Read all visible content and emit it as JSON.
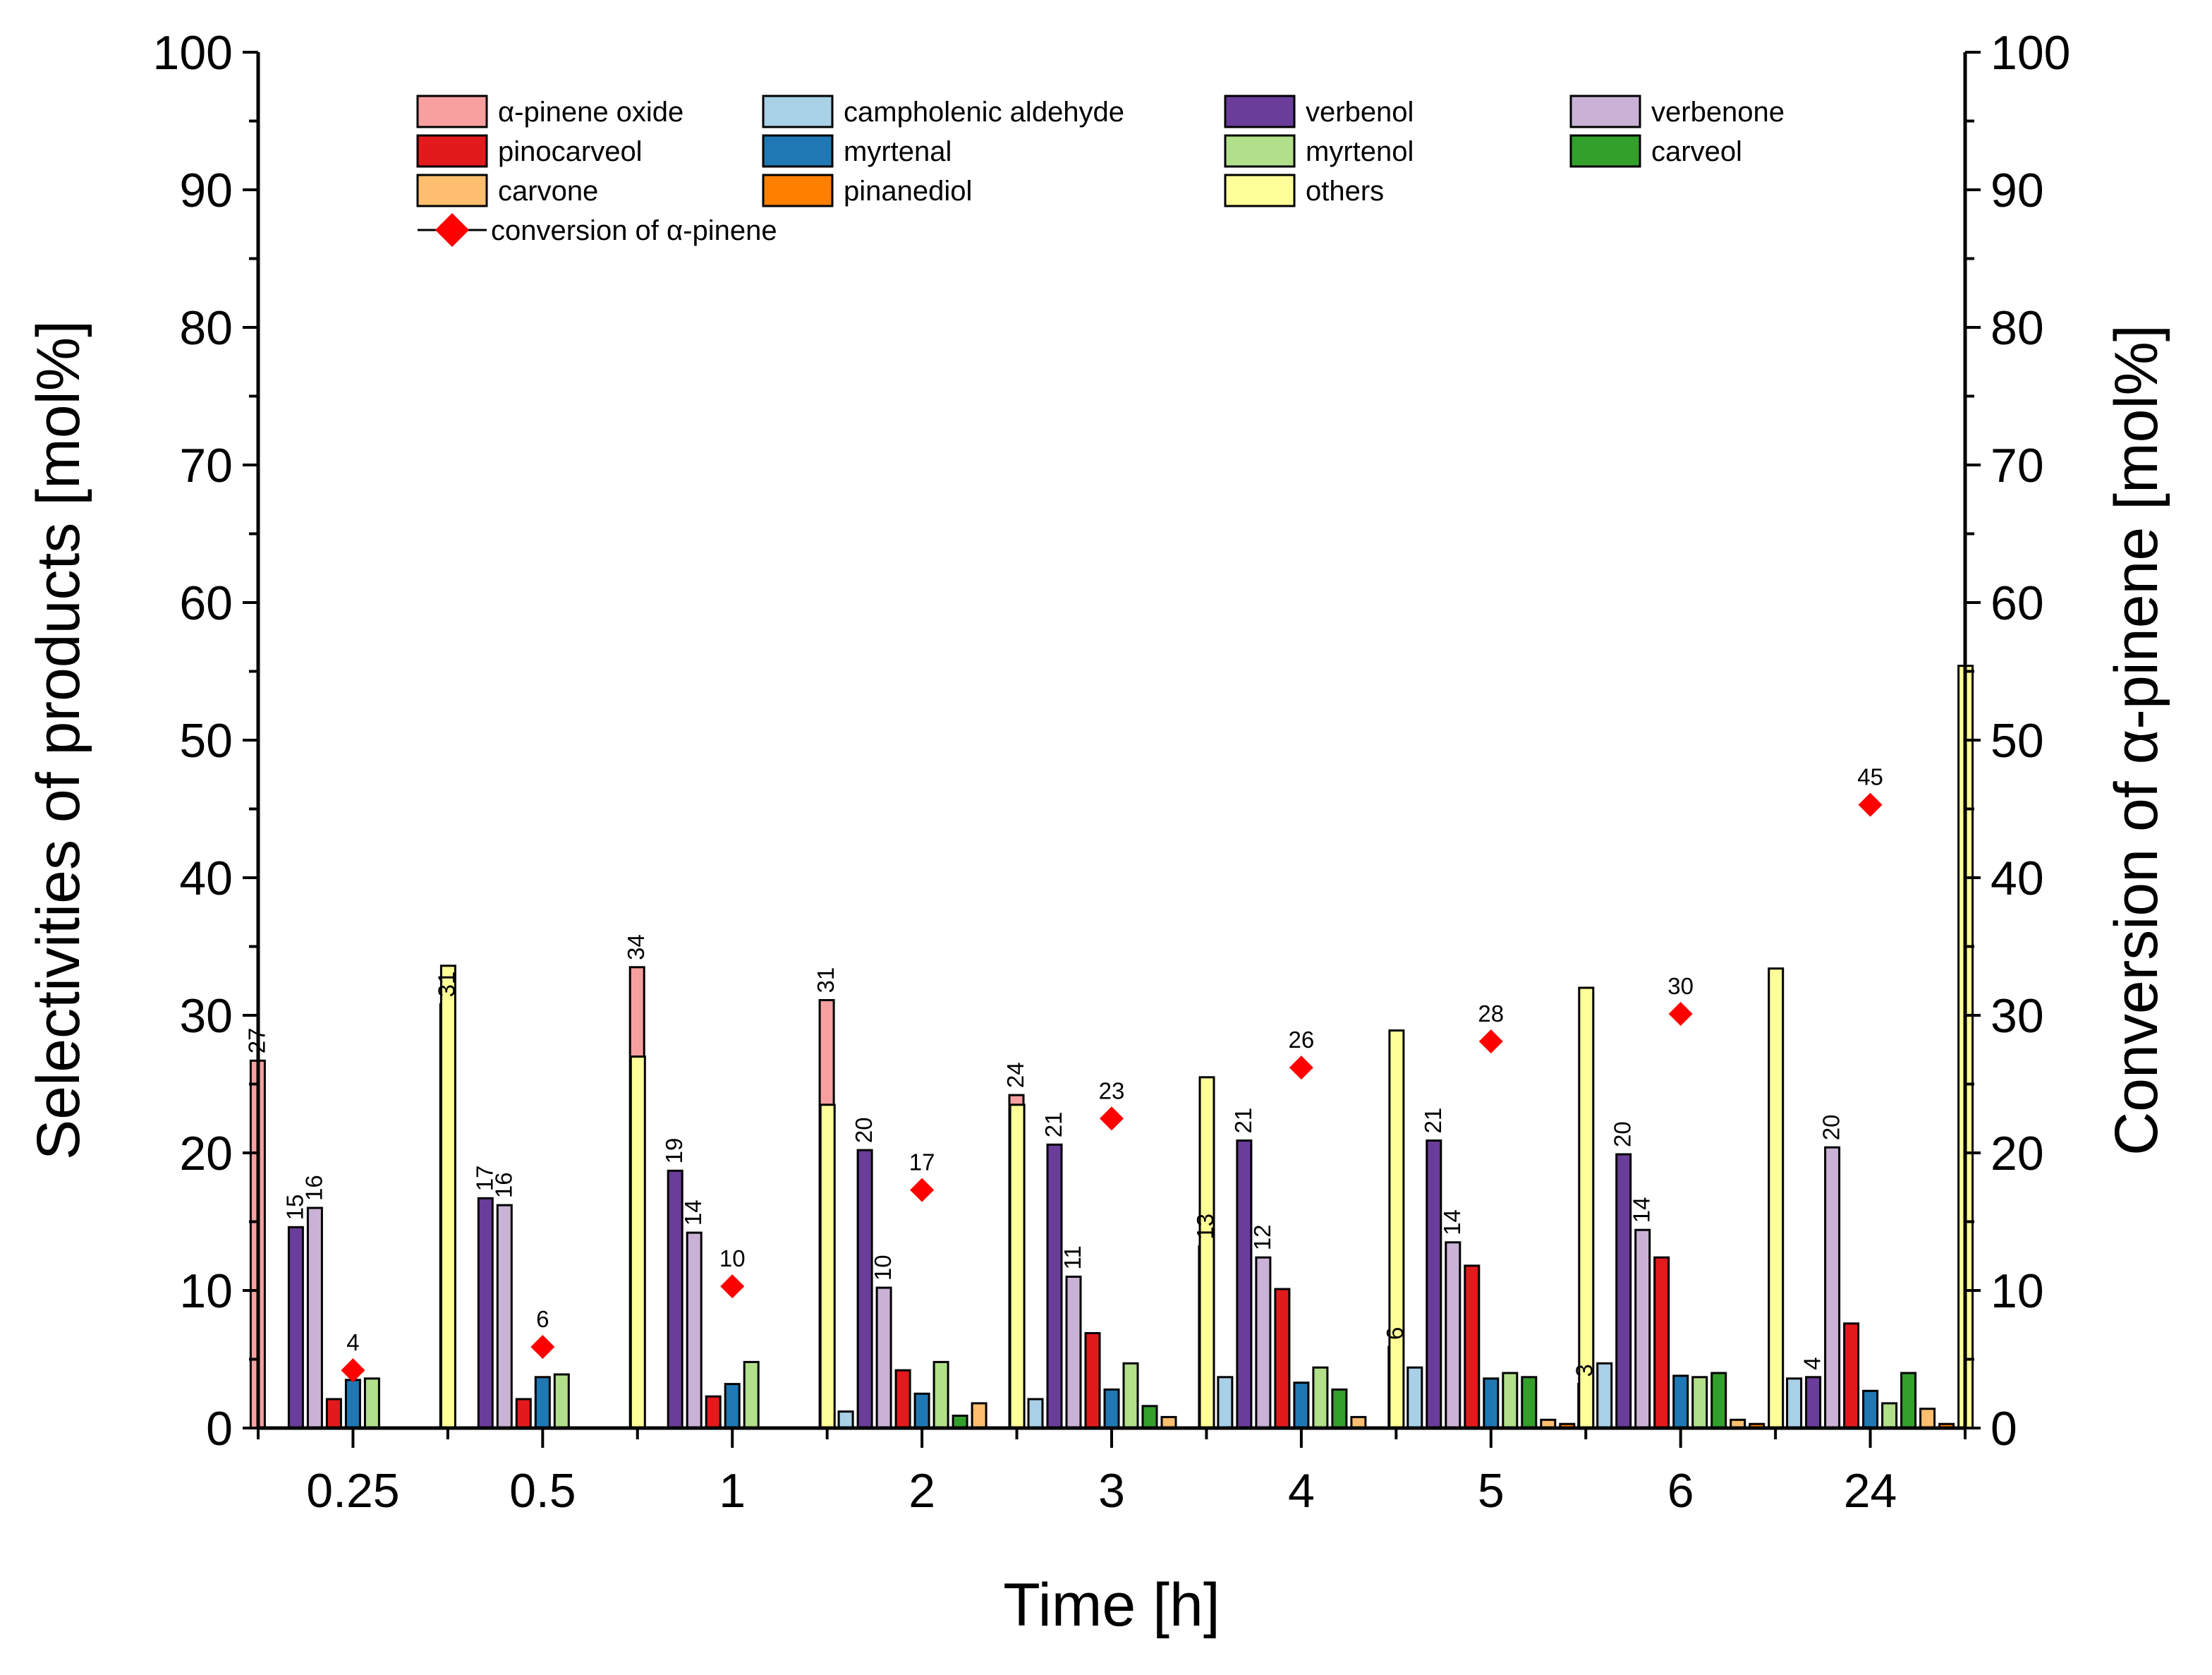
{
  "chart_data": {
    "type": "bar",
    "xlabel": "Time [h]",
    "ylabel_left": "Selectivities of products [mol%]",
    "ylabel_right": "Conversion of α-pinene [mol%]",
    "ylim": [
      0,
      100
    ],
    "yticks": [
      "0",
      "10",
      "20",
      "30",
      "40",
      "50",
      "60",
      "70",
      "80",
      "90",
      "100"
    ],
    "categories": [
      "0.25",
      "0.5",
      "1",
      "2",
      "3",
      "4",
      "5",
      "6",
      "24"
    ],
    "series": [
      {
        "name": "α-pinene oxide",
        "color": "#f8a0a0",
        "values": [
          26.7,
          30.8,
          33.5,
          31.1,
          24.2,
          13.2,
          5.9,
          3.2,
          0
        ],
        "labels": [
          "27",
          "31",
          "34",
          "31",
          "24",
          "13",
          "6",
          "3",
          ""
        ]
      },
      {
        "name": "campholenic aldehyde",
        "color": "#a8d0e6",
        "values": [
          0,
          0,
          0,
          1.2,
          2.1,
          3.7,
          4.4,
          4.7,
          3.6
        ],
        "labels": [
          "",
          "",
          "",
          "",
          "",
          "",
          "",
          "",
          ""
        ]
      },
      {
        "name": "verbenol",
        "color": "#6a3d9a",
        "values": [
          14.6,
          16.7,
          18.7,
          20.2,
          20.6,
          20.9,
          20.9,
          19.9,
          3.7
        ],
        "labels": [
          "15",
          "17",
          "19",
          "20",
          "21",
          "21",
          "21",
          "20",
          "4"
        ]
      },
      {
        "name": "verbenone",
        "color": "#cab2d6",
        "values": [
          16.0,
          16.2,
          14.2,
          10.2,
          11.0,
          12.4,
          13.5,
          14.4,
          20.4
        ],
        "labels": [
          "16",
          "16",
          "14",
          "10",
          "11",
          "12",
          "14",
          "14",
          "20"
        ]
      },
      {
        "name": "pinocarveol",
        "color": "#e31a1c",
        "values": [
          2.1,
          2.1,
          2.3,
          4.2,
          6.9,
          10.1,
          11.8,
          12.4,
          7.6
        ],
        "labels": [
          "",
          "",
          "",
          "",
          "",
          "",
          "",
          "",
          ""
        ]
      },
      {
        "name": "myrtenal",
        "color": "#1f78b4",
        "values": [
          3.5,
          3.7,
          3.2,
          2.5,
          2.8,
          3.3,
          3.6,
          3.8,
          2.7
        ],
        "labels": [
          "",
          "",
          "",
          "",
          "",
          "",
          "",
          "",
          ""
        ]
      },
      {
        "name": "myrtenol",
        "color": "#b2df8a",
        "values": [
          3.6,
          3.9,
          4.8,
          4.8,
          4.7,
          4.4,
          4.0,
          3.7,
          1.8
        ],
        "labels": [
          "",
          "",
          "",
          "",
          "",
          "",
          "",
          "",
          ""
        ]
      },
      {
        "name": "carveol",
        "color": "#33a02c",
        "values": [
          0,
          0,
          0,
          0.9,
          1.6,
          2.8,
          3.7,
          4.0,
          4.0
        ],
        "labels": [
          "",
          "",
          "",
          "",
          "",
          "",
          "",
          "",
          ""
        ]
      },
      {
        "name": "carvone",
        "color": "#fdbf6f",
        "values": [
          0,
          0,
          0,
          1.8,
          0.8,
          0.8,
          0.6,
          0.6,
          1.4
        ],
        "labels": [
          "",
          "",
          "",
          "",
          "",
          "",
          "",
          "",
          ""
        ]
      },
      {
        "name": "pinanediol",
        "color": "#ff7f00",
        "values": [
          0,
          0,
          0,
          0,
          0,
          0,
          0.3,
          0.3,
          0.3
        ],
        "labels": [
          "",
          "",
          "",
          "",
          "",
          "",
          "",
          "",
          ""
        ]
      },
      {
        "name": "others",
        "color": "#ffff99",
        "values": [
          33.6,
          27.0,
          23.5,
          23.5,
          25.5,
          28.9,
          32.0,
          33.4,
          55.4
        ],
        "labels": [
          "",
          "",
          "",
          "",
          "",
          "",
          "",
          "",
          ""
        ]
      }
    ],
    "conversion": {
      "name": "conversion of α-pinene",
      "color": "#ff0000",
      "values": [
        4.2,
        5.9,
        10.3,
        17.3,
        22.5,
        26.2,
        28.1,
        30.1,
        45.3
      ],
      "labels": [
        "4",
        "6",
        "10",
        "17",
        "23",
        "26",
        "28",
        "30",
        "45"
      ]
    },
    "legend": {
      "placement": "top-left",
      "order": [
        "α-pinene oxide",
        "campholenic aldehyde",
        "verbenol",
        "verbenone",
        "pinocarveol",
        "myrtenal",
        "myrtenol",
        "carveol",
        "carvone",
        "pinanediol",
        "others",
        "conversion of α-pinene"
      ]
    },
    "grid": false
  }
}
